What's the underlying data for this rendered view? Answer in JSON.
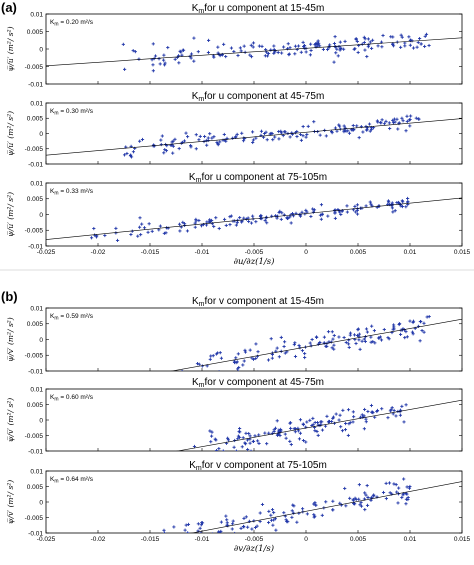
{
  "chart_data": [
    {
      "type": "scatter",
      "panel_label": "(a)",
      "title_prefix": "K",
      "title_sub": "m",
      "title_rest": "for u component at 15-45m",
      "km_sub": "m",
      "km_label": " = 0.20 m²/s",
      "ylabel": "ψ̅/u̅′ (m²/ s²)",
      "xlabel": "",
      "xlim": [
        -0.025,
        0.015
      ],
      "ylim": [
        -0.01,
        0.01
      ],
      "yticks": [
        "0.01",
        "0.005",
        "0",
        "-0.005",
        "-0.01"
      ],
      "xticks": [],
      "fit": {
        "slope": 0.2,
        "intercept": 0.0002
      },
      "scatter": {
        "x_range": [
          -0.018,
          0.012
        ],
        "spread": 0.0017,
        "n": 170,
        "seed": 11,
        "tail_extra": 0.001
      }
    },
    {
      "type": "scatter",
      "panel_label": "",
      "title_prefix": "K",
      "title_sub": "m",
      "title_rest": "for u component at 45-75m",
      "km_sub": "m",
      "km_label": " = 0.30 m²/s",
      "ylabel": "ψ̅/u̅′ (m²/ s²)",
      "xlabel": "",
      "xlim": [
        -0.025,
        0.015
      ],
      "ylim": [
        -0.01,
        0.01
      ],
      "yticks": [
        "0.01",
        "0.005",
        "0",
        "-0.005",
        "-0.01"
      ],
      "xticks": [],
      "fit": {
        "slope": 0.3,
        "intercept": 0.0004
      },
      "scatter": {
        "x_range": [
          -0.018,
          0.011
        ],
        "spread": 0.0016,
        "n": 170,
        "seed": 23,
        "tail_extra": 0.0008
      }
    },
    {
      "type": "scatter",
      "panel_label": "",
      "title_prefix": "K",
      "title_sub": "m",
      "title_rest": "for u component at 75-105m",
      "km_sub": "m",
      "km_label": " = 0.33 m²/s",
      "ylabel": "ψ̅/u̅′ (m²/ s²)",
      "xlabel": "∂u/∂z(1/s)",
      "xlim": [
        -0.025,
        0.015
      ],
      "ylim": [
        -0.01,
        0.01
      ],
      "yticks": [
        "0.01",
        "0.005",
        "0",
        "-0.005",
        "-0.01"
      ],
      "xticks": [
        "-0.025",
        "-0.02",
        "-0.015",
        "-0.01",
        "-0.005",
        "0",
        "0.005",
        "0.01",
        "0.015"
      ],
      "fit": {
        "slope": 0.33,
        "intercept": 0.0003
      },
      "scatter": {
        "x_range": [
          -0.021,
          0.01
        ],
        "spread": 0.0013,
        "n": 170,
        "seed": 37,
        "tail_extra": 0.0007
      }
    },
    {
      "type": "scatter",
      "panel_label": "(b)",
      "title_prefix": "K",
      "title_sub": "m",
      "title_rest": "for v component at 15-45m",
      "km_sub": "m",
      "km_label": " = 0.59 m²/s",
      "ylabel": "ψ̅/v̅′ (m²/ s²)",
      "xlabel": "",
      "xlim": [
        -0.025,
        0.015
      ],
      "ylim": [
        -0.01,
        0.01
      ],
      "yticks": [
        "0.01",
        "0.005",
        "0",
        "-0.005",
        "-0.01"
      ],
      "xticks": [],
      "fit": {
        "slope": 0.59,
        "intercept": -0.0024
      },
      "scatter": {
        "x_range": [
          -0.012,
          0.012
        ],
        "spread": 0.0025,
        "n": 150,
        "seed": 41,
        "tail_extra": 0.001
      }
    },
    {
      "type": "scatter",
      "panel_label": "",
      "title_prefix": "K",
      "title_sub": "m",
      "title_rest": "for v component at 45-75m",
      "km_sub": "m",
      "km_label": " = 0.60 m²/s",
      "ylabel": "ψ̅/v̅′ (m²/ s²)",
      "xlabel": "",
      "xlim": [
        -0.025,
        0.015
      ],
      "ylim": [
        -0.01,
        0.01
      ],
      "yticks": [
        "0.01",
        "0.005",
        "0",
        "-0.005",
        "-0.01"
      ],
      "xticks": [],
      "fit": {
        "slope": 0.6,
        "intercept": -0.0026
      },
      "scatter": {
        "x_range": [
          -0.011,
          0.01
        ],
        "spread": 0.0024,
        "n": 150,
        "seed": 53,
        "tail_extra": 0.0009
      }
    },
    {
      "type": "scatter",
      "panel_label": "",
      "title_prefix": "K",
      "title_sub": "m",
      "title_rest": "for v component at 75-105m",
      "km_sub": "m",
      "km_label": " = 0.64 m²/s",
      "ylabel": "ψ̅/v̅′ (m²/ s²)",
      "xlabel": "∂v/∂z(1/s)",
      "xlim": [
        -0.025,
        0.015
      ],
      "ylim": [
        -0.01,
        0.01
      ],
      "yticks": [
        "0.01",
        "0.005",
        "0",
        "-0.005",
        "-0.01"
      ],
      "xticks": [
        "-0.025",
        "-0.02",
        "-0.015",
        "-0.01",
        "-0.005",
        "0",
        "0.005",
        "0.01",
        "0.015"
      ],
      "fit": {
        "slope": 0.64,
        "intercept": -0.003
      },
      "scatter": {
        "x_range": [
          -0.014,
          0.01
        ],
        "spread": 0.0028,
        "n": 150,
        "seed": 67,
        "tail_extra": 0.001
      }
    }
  ],
  "colors": {
    "points": "#1f35a8",
    "axes": "#000000",
    "fit_line": "#000000"
  }
}
